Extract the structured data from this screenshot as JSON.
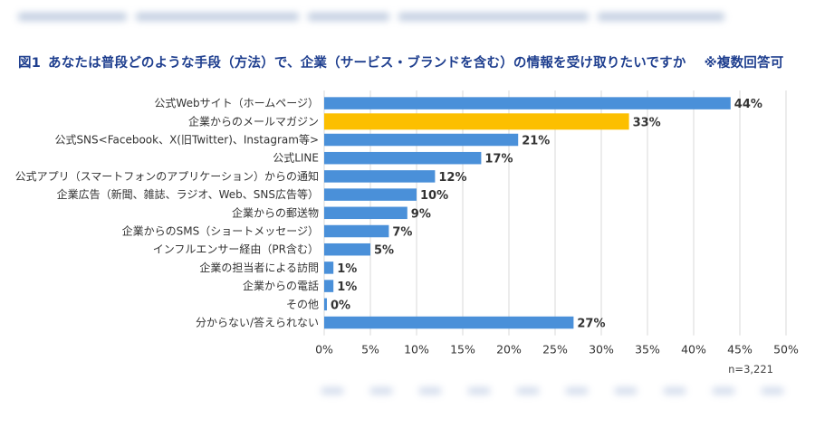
{
  "title": {
    "number": "図1",
    "text": "あなたは普段どのような手段（方法）で、企業（サービス・ブランドを含む）の情報を受け取りたいですか",
    "note": "※複数回答可"
  },
  "sample_size": "n=3,221",
  "colors": {
    "default_bar": "#4a90d9",
    "highlight_bar": "#fcbf00",
    "title": "#1f3f8f",
    "grid": "#d9d9d9"
  },
  "chart_data": {
    "type": "bar",
    "orientation": "horizontal",
    "categories": [
      "公式Webサイト（ホームページ）",
      "企業からのメールマガジン",
      "公式SNS<Facebook、X(旧Twitter)、Instagram等>",
      "公式LINE",
      "公式アプリ（スマートフォンのアプリケーション）からの通知",
      "企業広告（新聞、雑誌、ラジオ、Web、SNS広告等）",
      "企業からの郵送物",
      "企業からのSMS（ショートメッセージ）",
      "インフルエンサー経由（PR含む）",
      "企業の担当者による訪問",
      "企業からの電話",
      "その他",
      "分からない/答えられない"
    ],
    "values": [
      44,
      33,
      21,
      17,
      12,
      10,
      9,
      7,
      5,
      1,
      1,
      0,
      27
    ],
    "value_labels": [
      "44%",
      "33%",
      "21%",
      "17%",
      "12%",
      "10%",
      "9%",
      "7%",
      "5%",
      "1%",
      "1%",
      "0%",
      "27%"
    ],
    "highlight_index": 1,
    "xlim": [
      0,
      50
    ],
    "xticks": [
      0,
      5,
      10,
      15,
      20,
      25,
      30,
      35,
      40,
      45,
      50
    ],
    "xtick_labels": [
      "0%",
      "5%",
      "10%",
      "15%",
      "20%",
      "25%",
      "30%",
      "35%",
      "40%",
      "45%",
      "50%"
    ],
    "grid": true
  }
}
